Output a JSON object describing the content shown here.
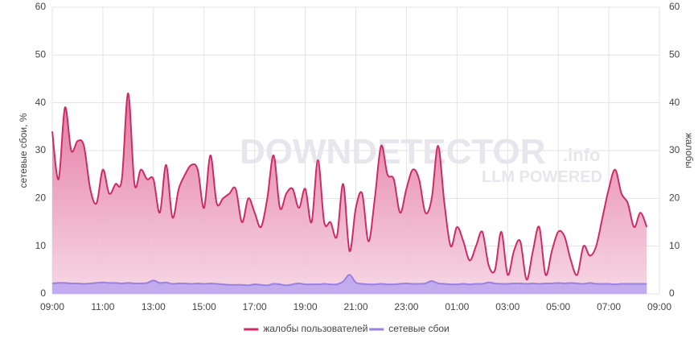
{
  "chart_data": {
    "type": "line",
    "y_label": "сетевые сбои, %",
    "y2_label": "жалобы",
    "watermark": {
      "brand": "DOWNDETECTOR",
      "suffix": ".info",
      "tag": "LLM POWERED"
    },
    "x": [
      "09:00",
      "09:15",
      "09:30",
      "09:45",
      "10:00",
      "10:15",
      "10:30",
      "10:45",
      "11:00",
      "11:15",
      "11:30",
      "11:45",
      "12:00",
      "12:15",
      "12:30",
      "12:45",
      "13:00",
      "13:15",
      "13:30",
      "13:45",
      "14:00",
      "14:15",
      "14:30",
      "14:45",
      "15:00",
      "15:15",
      "15:30",
      "15:45",
      "16:00",
      "16:15",
      "16:30",
      "16:45",
      "17:00",
      "17:15",
      "17:30",
      "17:45",
      "18:00",
      "18:15",
      "18:30",
      "18:45",
      "19:00",
      "19:15",
      "19:30",
      "19:45",
      "20:00",
      "20:15",
      "20:30",
      "20:45",
      "21:00",
      "21:15",
      "21:30",
      "21:45",
      "22:00",
      "22:15",
      "22:30",
      "22:45",
      "23:00",
      "23:15",
      "23:30",
      "23:45",
      "00:00",
      "00:15",
      "00:30",
      "00:45",
      "01:00",
      "01:15",
      "01:30",
      "01:45",
      "02:00",
      "02:15",
      "02:30",
      "02:45",
      "03:00",
      "03:15",
      "03:30",
      "03:45",
      "04:00",
      "04:15",
      "04:30",
      "04:45",
      "05:00",
      "05:15",
      "05:30",
      "05:45",
      "06:00",
      "06:15",
      "06:30",
      "06:45",
      "07:00",
      "07:15",
      "07:30",
      "07:45",
      "08:00",
      "08:15",
      "08:30"
    ],
    "series": [
      {
        "name": "жалобы пользователей",
        "color": "#cc2c66",
        "fill": "#e47aa3",
        "axis": "y2",
        "values": [
          34,
          24,
          39,
          30,
          32,
          31,
          22,
          19,
          26,
          21,
          23,
          24,
          42,
          23,
          26,
          24,
          24,
          17,
          27,
          16,
          22,
          25,
          27,
          26,
          18,
          29,
          19,
          20,
          21,
          22,
          15,
          20,
          17,
          14,
          20,
          29,
          18,
          21,
          22,
          18,
          22,
          15,
          28,
          15,
          15,
          12,
          23,
          9,
          18,
          21,
          11,
          20,
          31,
          25,
          24,
          17,
          22,
          26,
          24,
          17,
          20,
          31,
          19,
          10,
          14,
          11,
          7,
          10,
          13,
          6,
          5,
          13,
          4,
          9,
          11,
          3,
          9,
          14,
          4,
          9,
          13,
          12,
          7,
          4,
          10,
          8,
          10,
          16,
          22,
          26,
          21,
          19,
          14,
          17,
          14
        ]
      },
      {
        "name": "сетевые сбои",
        "color": "#9a80e2",
        "fill": "#b8a4ef",
        "values": [
          2.2,
          2.3,
          2.3,
          2.2,
          2.2,
          2.1,
          2.2,
          2.3,
          2.4,
          2.3,
          2.3,
          2.2,
          2.3,
          2.2,
          2.2,
          2.3,
          2.8,
          2.3,
          2.4,
          2.1,
          2.2,
          2.2,
          2.1,
          2.2,
          2.1,
          2.2,
          2.1,
          2.0,
          1.9,
          1.9,
          1.9,
          1.8,
          2.0,
          1.9,
          1.8,
          2.1,
          2.0,
          1.8,
          2.0,
          2.2,
          2.0,
          2.0,
          2.0,
          2.1,
          2.0,
          2.0,
          2.6,
          4.0,
          2.4,
          2.1,
          2.0,
          2.0,
          2.1,
          2.0,
          2.0,
          2.1,
          2.2,
          2.1,
          2.1,
          2.2,
          2.7,
          2.2,
          2.1,
          2.0,
          2.0,
          2.1,
          2.0,
          2.1,
          2.1,
          2.4,
          2.2,
          2.1,
          2.1,
          2.2,
          2.2,
          2.1,
          2.2,
          2.1,
          2.2,
          2.2,
          2.3,
          2.2,
          2.3,
          2.2,
          2.1,
          2.3,
          2.1,
          2.1,
          2.1,
          2.0,
          2.1,
          2.1,
          2.1,
          2.1,
          2.1
        ]
      }
    ],
    "xticks": [
      "09:00",
      "11:00",
      "13:00",
      "15:00",
      "17:00",
      "19:00",
      "21:00",
      "23:00",
      "01:00",
      "03:00",
      "05:00",
      "07:00",
      "09:00"
    ],
    "ylim": [
      0,
      60
    ],
    "yticks": [
      0,
      10,
      20,
      30,
      40,
      50,
      60
    ],
    "y2lim": [
      0,
      60
    ],
    "y2ticks": [
      0,
      10,
      20,
      30,
      40,
      50,
      60
    ],
    "grid": true,
    "legend": "bottom"
  }
}
